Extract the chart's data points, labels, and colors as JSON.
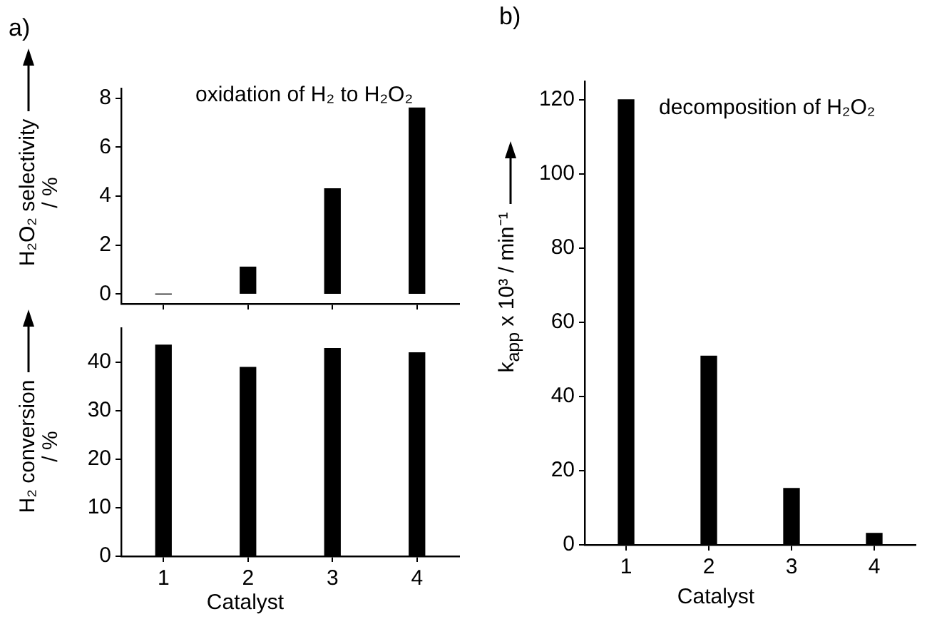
{
  "chart_data": [
    {
      "type": "bar",
      "title": "oxidation of H₂ to H₂O₂",
      "ylabel": "H₂O₂ selectivity / %",
      "annotations": [
        "a)"
      ],
      "categories": [
        "1",
        "2",
        "3",
        "4"
      ],
      "values": [
        0,
        1.1,
        4.3,
        7.6
      ],
      "color": "#000000",
      "ylim": [
        -0.4,
        8.4
      ],
      "yticks": [
        0,
        2,
        4,
        6,
        8
      ],
      "grid": false,
      "tick_labels": "y"
    },
    {
      "type": "bar",
      "xlabel": "Catalyst",
      "ylabel": "H₂ conversion / %",
      "categories": [
        "1",
        "2",
        "3",
        "4"
      ],
      "values": [
        43.5,
        38.9,
        42.8,
        41.9
      ],
      "color": "#000000",
      "ylim": [
        0,
        47
      ],
      "yticks": [
        0,
        10,
        20,
        30,
        40
      ],
      "grid": false
    },
    {
      "type": "bar",
      "title": "decomposition of H₂O₂",
      "xlabel": "Catalyst",
      "ylabel": "k$_{app}$ x 10³ / min⁻¹",
      "annotations": [
        "b)"
      ],
      "categories": [
        "1",
        "2",
        "3",
        "4"
      ],
      "values": [
        120,
        50.9,
        15.2,
        3.1
      ],
      "color": "#000000",
      "ylim": [
        0,
        125
      ],
      "yticks": [
        0,
        20,
        40,
        60,
        80,
        100,
        120
      ],
      "grid": false
    }
  ]
}
